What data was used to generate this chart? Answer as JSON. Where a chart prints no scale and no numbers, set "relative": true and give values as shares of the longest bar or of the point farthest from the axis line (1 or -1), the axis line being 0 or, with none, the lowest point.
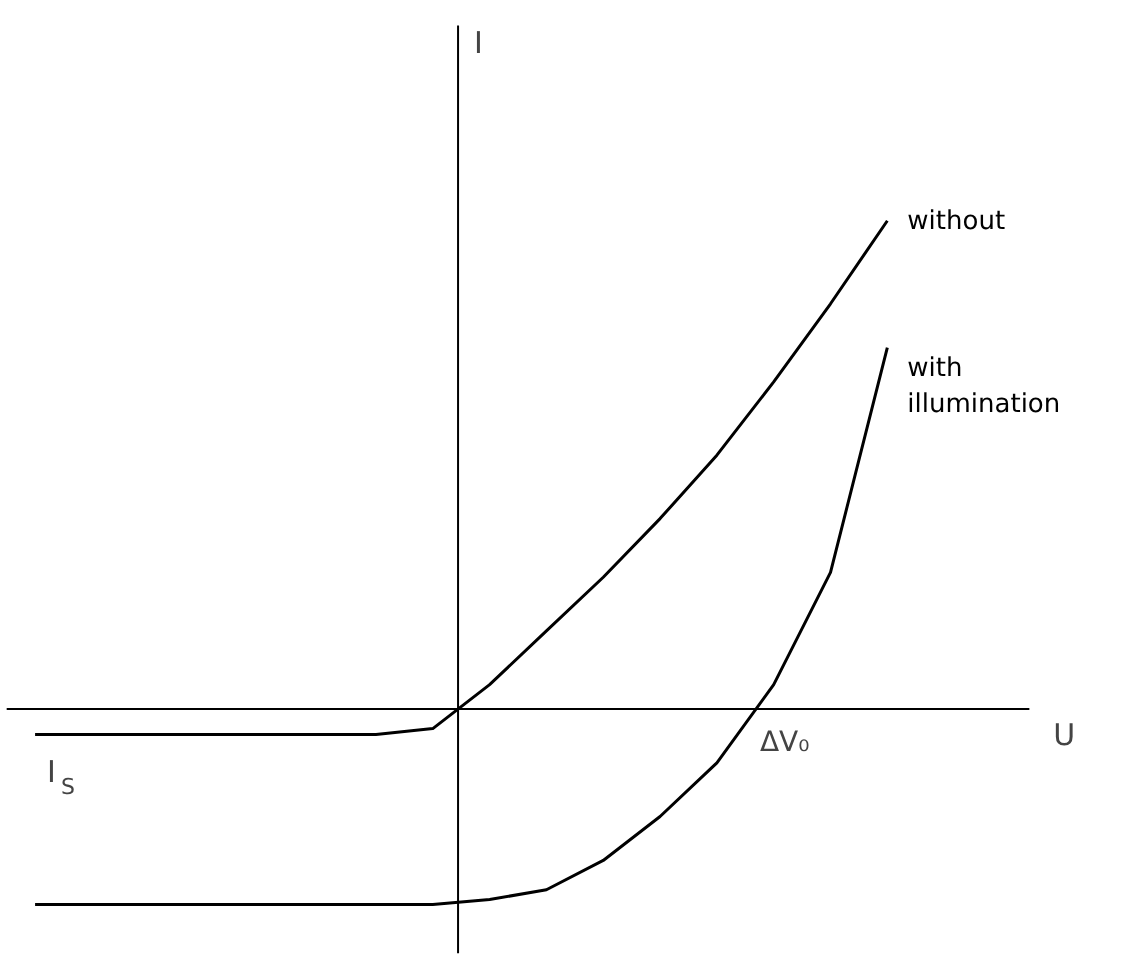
{
  "chart_data": {
    "type": "line",
    "relative": true,
    "xlabel": "U",
    "ylabel": "I",
    "grid": false,
    "marker": "none",
    "line_style": "solid",
    "categories": [
      null,
      null,
      null,
      null,
      null,
      null,
      null,
      null,
      null,
      null,
      null,
      null,
      null,
      null,
      null,
      null
    ],
    "series": [
      {
        "name": "without",
        "color": "#000000",
        "values": [
          -0.052,
          -0.052,
          -0.052,
          -0.052,
          -0.052,
          -0.052,
          -0.052,
          -0.04,
          0.05,
          0.16,
          0.27,
          0.39,
          0.52,
          0.67,
          0.83,
          1.0
        ]
      },
      {
        "name": "with illumination",
        "color": "#000000",
        "values": [
          -0.4,
          -0.4,
          -0.4,
          -0.4,
          -0.4,
          -0.4,
          -0.4,
          -0.4,
          -0.39,
          -0.37,
          -0.31,
          -0.22,
          -0.11,
          0.05,
          0.28,
          0.74
        ]
      }
    ],
    "annotations": [
      "ΔV₀",
      "I$_{S}$"
    ]
  }
}
